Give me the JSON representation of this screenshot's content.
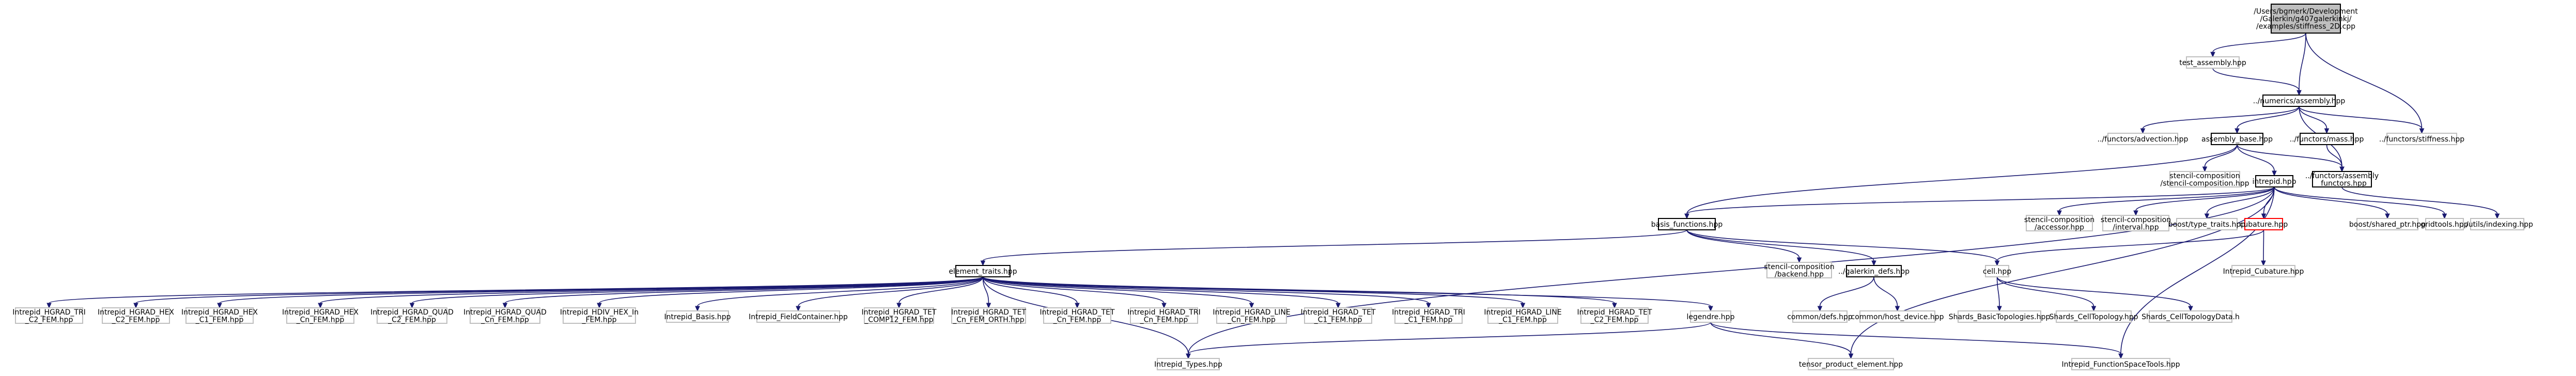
{
  "graph": {
    "colors": {
      "edge": "#191970",
      "node_border": "#bfbfbf",
      "node_fill": "#ffffff",
      "root_fill": "#bfbfbf",
      "root_border": "#000000",
      "linked_border": "#000000",
      "missing_border": "#ff0000"
    },
    "nodes": [
      {
        "id": "root",
        "lines": [
          "/Users/bgmerk/Development",
          "/Galerkin/g407galerkinkj/",
          "/examples/stiffness_2D.cpp"
        ],
        "style": "root"
      },
      {
        "id": "test_assembly",
        "lines": [
          "test_assembly.hpp"
        ],
        "style": "plain"
      },
      {
        "id": "numerics_assembly",
        "lines": [
          "../numerics/assembly.hpp"
        ],
        "style": "linked"
      },
      {
        "id": "functors_advection",
        "lines": [
          "../functors/advection.hpp"
        ],
        "style": "plain"
      },
      {
        "id": "assembly_base",
        "lines": [
          "assembly_base.hpp"
        ],
        "style": "linked"
      },
      {
        "id": "functors_mass",
        "lines": [
          "../functors/mass.hpp"
        ],
        "style": "linked"
      },
      {
        "id": "functors_stiffness",
        "lines": [
          "../functors/stiffness.hpp"
        ],
        "style": "plain"
      },
      {
        "id": "stencil_composition",
        "lines": [
          "stencil-composition",
          "/stencil-composition.hpp"
        ],
        "style": "plain"
      },
      {
        "id": "intrepid",
        "lines": [
          "intrepid.hpp"
        ],
        "style": "linked"
      },
      {
        "id": "assembly_functors",
        "lines": [
          "../functors/assembly",
          "_functors.hpp"
        ],
        "style": "linked"
      },
      {
        "id": "basis_functions",
        "lines": [
          "basis_functions.hpp"
        ],
        "style": "linked"
      },
      {
        "id": "stencil_accessor",
        "lines": [
          "stencil-composition",
          "/accessor.hpp"
        ],
        "style": "plain"
      },
      {
        "id": "stencil_interval",
        "lines": [
          "stencil-composition",
          "/interval.hpp"
        ],
        "style": "plain"
      },
      {
        "id": "boost_type_traits",
        "lines": [
          "boost/type_traits.hpp"
        ],
        "style": "plain"
      },
      {
        "id": "cubature",
        "lines": [
          "cubature.hpp"
        ],
        "style": "missing"
      },
      {
        "id": "boost_shared_ptr",
        "lines": [
          "boost/shared_ptr.hpp"
        ],
        "style": "plain"
      },
      {
        "id": "gridtools",
        "lines": [
          "gridtools.hpp"
        ],
        "style": "plain"
      },
      {
        "id": "utils_indexing",
        "lines": [
          "../utils/indexing.hpp"
        ],
        "style": "plain"
      },
      {
        "id": "element_traits",
        "lines": [
          "element_traits.hpp"
        ],
        "style": "linked"
      },
      {
        "id": "stencil_backend",
        "lines": [
          "stencil-composition",
          "/backend.hpp"
        ],
        "style": "plain"
      },
      {
        "id": "galerkin_defs",
        "lines": [
          "../galerkin_defs.hpp"
        ],
        "style": "linked"
      },
      {
        "id": "cell",
        "lines": [
          "cell.hpp"
        ],
        "style": "plain"
      },
      {
        "id": "intrepid_cubature",
        "lines": [
          "Intrepid_Cubature.hpp"
        ],
        "style": "plain"
      },
      {
        "id": "hgrad_tri_c2",
        "lines": [
          "Intrepid_HGRAD_TRI",
          "_C2_FEM.hpp"
        ],
        "style": "plain"
      },
      {
        "id": "hgrad_hex_c2",
        "lines": [
          "Intrepid_HGRAD_HEX",
          "_C2_FEM.hpp"
        ],
        "style": "plain"
      },
      {
        "id": "hgrad_hex_c1",
        "lines": [
          "Intrepid_HGRAD_HEX",
          "_C1_FEM.hpp"
        ],
        "style": "plain"
      },
      {
        "id": "hgrad_hex_cn",
        "lines": [
          "Intrepid_HGRAD_HEX",
          "_Cn_FEM.hpp"
        ],
        "style": "plain"
      },
      {
        "id": "hgrad_quad_c2",
        "lines": [
          "Intrepid_HGRAD_QUAD",
          "_C2_FEM.hpp"
        ],
        "style": "plain"
      },
      {
        "id": "hgrad_quad_cn",
        "lines": [
          "Intrepid_HGRAD_QUAD",
          "_Cn_FEM.hpp"
        ],
        "style": "plain"
      },
      {
        "id": "hdiv_hex_in",
        "lines": [
          "Intrepid_HDIV_HEX_In",
          "_FEM.hpp"
        ],
        "style": "plain"
      },
      {
        "id": "intrepid_basis",
        "lines": [
          "Intrepid_Basis.hpp"
        ],
        "style": "plain"
      },
      {
        "id": "intrepid_fieldcontainer",
        "lines": [
          "Intrepid_FieldContainer.hpp"
        ],
        "style": "plain"
      },
      {
        "id": "hgrad_tet_comp12",
        "lines": [
          "Intrepid_HGRAD_TET",
          "_COMP12_FEM.hpp"
        ],
        "style": "plain"
      },
      {
        "id": "hgrad_tet_cn_orth",
        "lines": [
          "Intrepid_HGRAD_TET",
          "_Cn_FEM_ORTH.hpp"
        ],
        "style": "plain"
      },
      {
        "id": "hgrad_tet_cn",
        "lines": [
          "Intrepid_HGRAD_TET",
          "_Cn_FEM.hpp"
        ],
        "style": "plain"
      },
      {
        "id": "hgrad_tri_cn",
        "lines": [
          "Intrepid_HGRAD_TRI",
          "_Cn_FEM.hpp"
        ],
        "style": "plain"
      },
      {
        "id": "hgrad_line_cn",
        "lines": [
          "Intrepid_HGRAD_LINE",
          "_Cn_FEM.hpp"
        ],
        "style": "plain"
      },
      {
        "id": "hgrad_tet_c1",
        "lines": [
          "Intrepid_HGRAD_TET",
          "_C1_FEM.hpp"
        ],
        "style": "plain"
      },
      {
        "id": "hgrad_tri_c1",
        "lines": [
          "Intrepid_HGRAD_TRI",
          "_C1_FEM.hpp"
        ],
        "style": "plain"
      },
      {
        "id": "hgrad_line_c1",
        "lines": [
          "Intrepid_HGRAD_LINE",
          "_C1_FEM.hpp"
        ],
        "style": "plain"
      },
      {
        "id": "hgrad_tet_c2",
        "lines": [
          "Intrepid_HGRAD_TET",
          "_C2_FEM.hpp"
        ],
        "style": "plain"
      },
      {
        "id": "legendre",
        "lines": [
          "legendre.hpp"
        ],
        "style": "plain"
      },
      {
        "id": "common_defs",
        "lines": [
          "common/defs.hpp"
        ],
        "style": "plain"
      },
      {
        "id": "common_host_device",
        "lines": [
          "common/host_device.hpp"
        ],
        "style": "plain"
      },
      {
        "id": "shards_basic_topologies",
        "lines": [
          "Shards_BasicTopologies.hpp"
        ],
        "style": "plain"
      },
      {
        "id": "shards_cell_topology",
        "lines": [
          "Shards_CellTopology.hpp"
        ],
        "style": "plain"
      },
      {
        "id": "shards_cell_topology_data",
        "lines": [
          "Shards_CellTopologyData.h"
        ],
        "style": "plain"
      },
      {
        "id": "intrepid_types",
        "lines": [
          "Intrepid_Types.hpp"
        ],
        "style": "plain"
      },
      {
        "id": "tensor_product_element",
        "lines": [
          "tensor_product_element.hpp"
        ],
        "style": "plain"
      },
      {
        "id": "intrepid_function_space_tools",
        "lines": [
          "Intrepid_FunctionSpaceTools.hpp"
        ],
        "style": "plain"
      }
    ],
    "edges": [
      [
        "root",
        "test_assembly"
      ],
      [
        "root",
        "numerics_assembly"
      ],
      [
        "root",
        "functors_stiffness"
      ],
      [
        "test_assembly",
        "numerics_assembly"
      ],
      [
        "numerics_assembly",
        "functors_advection"
      ],
      [
        "numerics_assembly",
        "assembly_base"
      ],
      [
        "numerics_assembly",
        "functors_mass"
      ],
      [
        "numerics_assembly",
        "functors_stiffness"
      ],
      [
        "numerics_assembly",
        "assembly_functors"
      ],
      [
        "assembly_base",
        "stencil_composition"
      ],
      [
        "assembly_base",
        "intrepid"
      ],
      [
        "assembly_base",
        "basis_functions"
      ],
      [
        "assembly_base",
        "assembly_functors"
      ],
      [
        "functors_mass",
        "assembly_functors"
      ],
      [
        "assembly_functors",
        "utils_indexing"
      ],
      [
        "intrepid",
        "basis_functions"
      ],
      [
        "intrepid",
        "stencil_accessor"
      ],
      [
        "intrepid",
        "stencil_interval"
      ],
      [
        "intrepid",
        "boost_type_traits"
      ],
      [
        "intrepid",
        "cubature"
      ],
      [
        "intrepid",
        "boost_shared_ptr"
      ],
      [
        "intrepid",
        "gridtools"
      ],
      [
        "intrepid",
        "intrepid_types"
      ],
      [
        "intrepid",
        "tensor_product_element"
      ],
      [
        "intrepid",
        "intrepid_function_space_tools"
      ],
      [
        "basis_functions",
        "element_traits"
      ],
      [
        "basis_functions",
        "stencil_backend"
      ],
      [
        "basis_functions",
        "galerkin_defs"
      ],
      [
        "basis_functions",
        "cell"
      ],
      [
        "cubature",
        "cell"
      ],
      [
        "cubature",
        "intrepid_cubature"
      ],
      [
        "element_traits",
        "hgrad_tri_c2"
      ],
      [
        "element_traits",
        "hgrad_hex_c2"
      ],
      [
        "element_traits",
        "hgrad_hex_c1"
      ],
      [
        "element_traits",
        "hgrad_hex_cn"
      ],
      [
        "element_traits",
        "hgrad_quad_c2"
      ],
      [
        "element_traits",
        "hgrad_quad_cn"
      ],
      [
        "element_traits",
        "hdiv_hex_in"
      ],
      [
        "element_traits",
        "intrepid_basis"
      ],
      [
        "element_traits",
        "intrepid_fieldcontainer"
      ],
      [
        "element_traits",
        "hgrad_tet_comp12"
      ],
      [
        "element_traits",
        "hgrad_tet_cn_orth"
      ],
      [
        "element_traits",
        "hgrad_tet_cn"
      ],
      [
        "element_traits",
        "hgrad_tri_cn"
      ],
      [
        "element_traits",
        "hgrad_line_cn"
      ],
      [
        "element_traits",
        "hgrad_tet_c1"
      ],
      [
        "element_traits",
        "hgrad_tri_c1"
      ],
      [
        "element_traits",
        "hgrad_line_c1"
      ],
      [
        "element_traits",
        "hgrad_tet_c2"
      ],
      [
        "element_traits",
        "legendre"
      ],
      [
        "element_traits",
        "intrepid_types"
      ],
      [
        "galerkin_defs",
        "common_defs"
      ],
      [
        "galerkin_defs",
        "common_host_device"
      ],
      [
        "cell",
        "shards_basic_topologies"
      ],
      [
        "cell",
        "shards_cell_topology"
      ],
      [
        "cell",
        "shards_cell_topology_data"
      ],
      [
        "legendre",
        "intrepid_types"
      ],
      [
        "legendre",
        "tensor_product_element"
      ],
      [
        "legendre",
        "intrepid_function_space_tools"
      ]
    ]
  }
}
